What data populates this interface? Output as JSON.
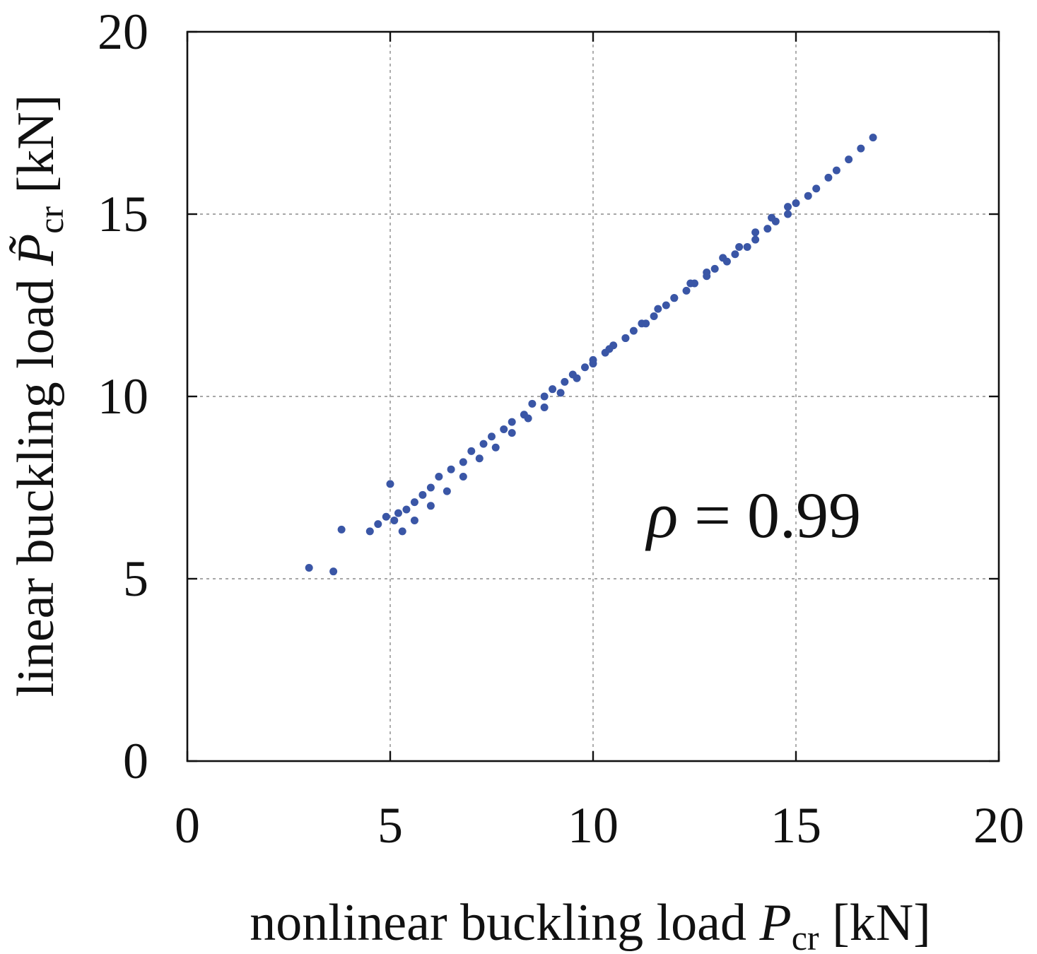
{
  "chart_data": {
    "type": "scatter",
    "xlabel": {
      "text": "nonlinear buckling load ",
      "symbol": "P",
      "subscript": "cr",
      "unit": " [kN]"
    },
    "ylabel": {
      "text": "linear buckling load ",
      "symbol": "P̃",
      "subscript": "cr",
      "unit": " [kN]"
    },
    "xlim": [
      0,
      20
    ],
    "ylim": [
      0,
      20
    ],
    "xticks": [
      "0",
      "5",
      "10",
      "15",
      "20"
    ],
    "yticks": [
      "0",
      "5",
      "10",
      "15",
      "20"
    ],
    "grid": true,
    "marker_color": "#3a56a6",
    "annotation": {
      "symbol": "ρ",
      "text": " = 0.99"
    },
    "series": [
      {
        "x": [
          3.0,
          3.6,
          3.8,
          4.5,
          4.7,
          4.9,
          5.0,
          5.1,
          5.2,
          5.4,
          5.6,
          5.8,
          6.0,
          6.2,
          6.5,
          6.8,
          7.0,
          7.3,
          7.5,
          7.8,
          8.0,
          8.3,
          8.5,
          8.8,
          9.0,
          9.3,
          9.5,
          9.8,
          10.0,
          10.3,
          10.5,
          10.8,
          11.0,
          11.3,
          11.5,
          11.8,
          12.0,
          12.3,
          12.5,
          12.8,
          13.0,
          13.3,
          13.5,
          13.8,
          14.0,
          14.3,
          14.5,
          14.8,
          15.0,
          15.3,
          15.5,
          15.8,
          16.0,
          16.3,
          16.6,
          16.9,
          5.3,
          5.6,
          6.0,
          6.4,
          6.8,
          7.2,
          7.6,
          8.0,
          8.4,
          8.8,
          9.2,
          9.6,
          10.0,
          10.4,
          10.8,
          11.2,
          11.6,
          12.0,
          12.4,
          12.8,
          13.2,
          13.6,
          14.0,
          14.4,
          14.8
        ],
        "y": [
          5.3,
          5.2,
          6.35,
          6.3,
          6.5,
          6.7,
          7.6,
          6.6,
          6.8,
          6.9,
          7.1,
          7.3,
          7.5,
          7.8,
          8.0,
          8.2,
          8.5,
          8.7,
          8.9,
          9.1,
          9.3,
          9.5,
          9.8,
          10.0,
          10.2,
          10.4,
          10.6,
          10.8,
          11.0,
          11.2,
          11.4,
          11.6,
          11.8,
          12.0,
          12.2,
          12.5,
          12.7,
          12.9,
          13.1,
          13.3,
          13.5,
          13.7,
          13.9,
          14.1,
          14.3,
          14.6,
          14.8,
          15.0,
          15.3,
          15.5,
          15.7,
          16.0,
          16.2,
          16.5,
          16.8,
          17.1,
          6.3,
          6.6,
          7.0,
          7.4,
          7.8,
          8.3,
          8.6,
          9.0,
          9.4,
          9.7,
          10.1,
          10.5,
          10.9,
          11.3,
          11.6,
          12.0,
          12.4,
          12.7,
          13.1,
          13.4,
          13.8,
          14.1,
          14.5,
          14.9,
          15.2
        ]
      }
    ]
  }
}
